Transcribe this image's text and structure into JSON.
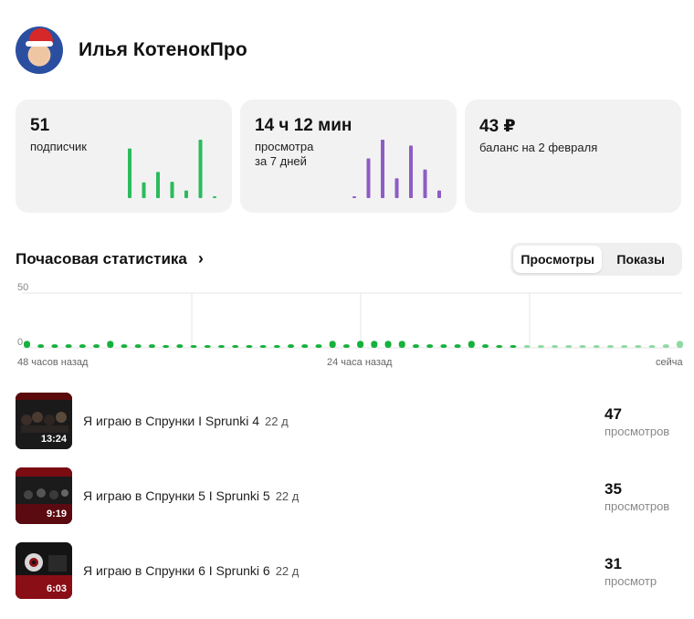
{
  "profile": {
    "name": "Илья КотенокПро"
  },
  "cards": [
    {
      "value": "51",
      "label_lines": [
        "подписчик"
      ],
      "bar_color": "#2bbb5d",
      "bars": [
        0.85,
        0.27,
        0.45,
        0.28,
        0.13,
        1.0,
        0.03
      ]
    },
    {
      "value": "14 ч 12 мин",
      "label_lines": [
        "просмотра",
        "за 7 дней"
      ],
      "bar_color": "#8e5cc5",
      "bars": [
        0.03,
        0.68,
        1.0,
        0.34,
        0.9,
        0.49,
        0.13
      ]
    },
    {
      "value": "43 ₽",
      "label_lines": [
        "баланс на 2 февраля"
      ],
      "bar_color": "",
      "bars": []
    }
  ],
  "hourly": {
    "title": "Почасовая статистика",
    "tabs": [
      {
        "label": "Просмотры",
        "active": true
      },
      {
        "label": "Показы",
        "active": false
      }
    ],
    "chart_data": {
      "type": "bar",
      "y_ticks": [
        "50",
        "0"
      ],
      "ylim": [
        0,
        50
      ],
      "x_tick_labels": [
        "48 часов назад",
        "24 часа назад",
        "сейча"
      ],
      "grid": true,
      "series": [
        {
          "values": [
            2,
            1,
            1,
            1,
            1,
            1,
            2,
            1,
            1,
            1,
            0,
            1,
            0,
            0,
            0,
            0,
            0,
            0,
            0,
            1,
            1,
            1,
            2,
            1,
            2,
            2,
            2,
            2,
            1,
            1,
            1,
            1,
            2,
            1,
            0,
            0,
            0,
            0,
            0,
            0,
            0,
            0,
            0,
            0,
            0,
            0,
            1,
            2
          ],
          "recent_last_hours": 12
        }
      ]
    }
  },
  "videos": [
    {
      "title": "Я играю в Спрунки I Sprunki 4",
      "age": "22 д",
      "duration": "13:24",
      "count": "47",
      "count_label": "просмотров"
    },
    {
      "title": "Я играю в Спрунки 5 I Sprunki 5",
      "age": "22 д",
      "duration": "9:19",
      "count": "35",
      "count_label": "просмотров"
    },
    {
      "title": "Я играю в Спрунки 6 I Sprunki 6",
      "age": "22 д",
      "duration": "6:03",
      "count": "31",
      "count_label": "просмотр"
    }
  ]
}
